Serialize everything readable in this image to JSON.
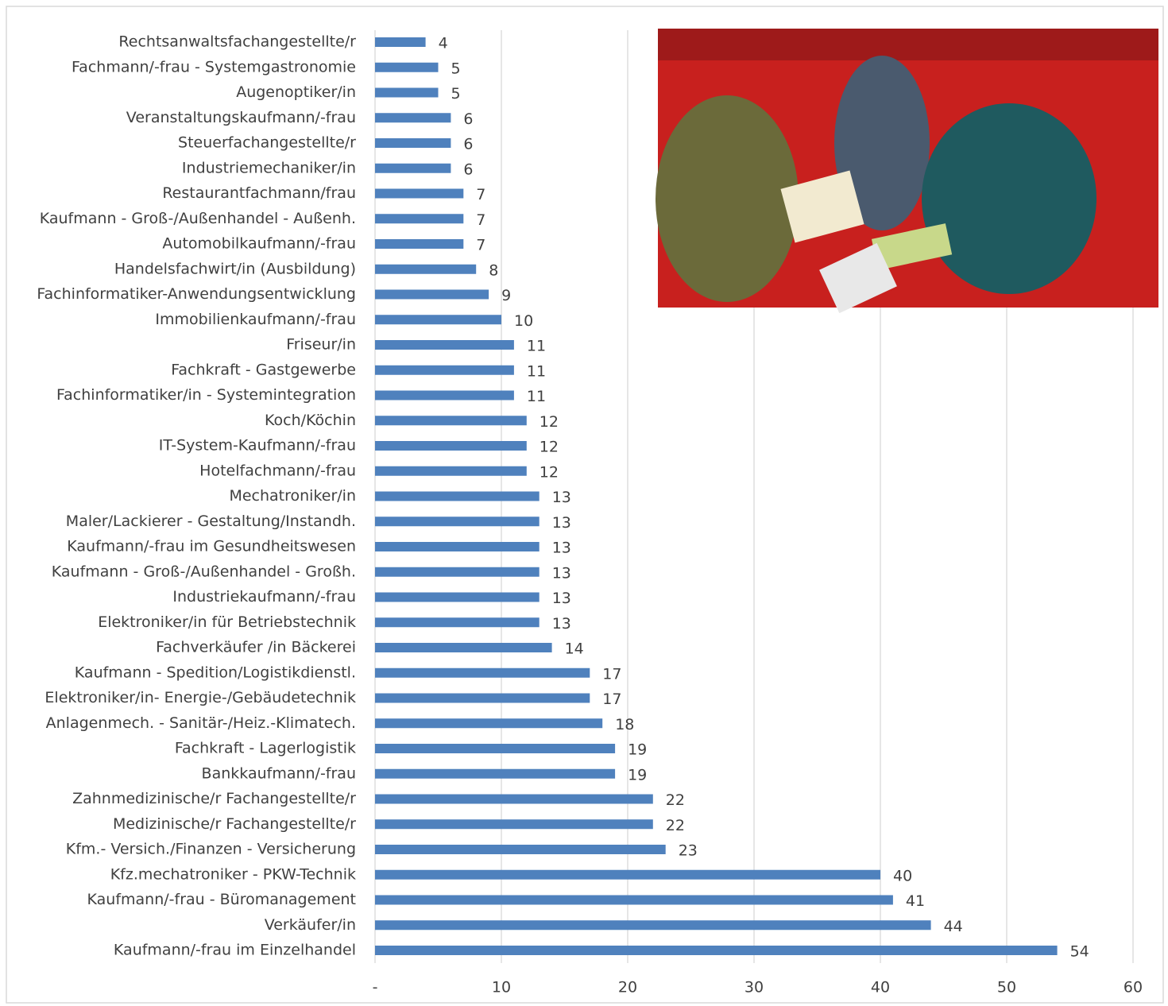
{
  "chart_data": {
    "type": "barh",
    "categories": [
      "Rechtsanwaltsfachangestellte/r",
      "Fachmann/-frau - Systemgastronomie",
      "Augenoptiker/in",
      "Veranstaltungskaufmann/-frau",
      "Steuerfachangestellte/r",
      "Industriemechaniker/in",
      "Restaurantfachmann/frau",
      "Kaufmann - Groß-/Außenhandel - Außenh.",
      "Automobilkaufmann/-frau",
      "Handelsfachwirt/in (Ausbildung)",
      "Fachinformatiker-Anwendungsentwicklung",
      "Immobilienkaufmann/-frau",
      "Friseur/in",
      "Fachkraft - Gastgewerbe",
      "Fachinformatiker/in - Systemintegration",
      "Koch/Köchin",
      "IT-System-Kaufmann/-frau",
      "Hotelfachmann/-frau",
      "Mechatroniker/in",
      "Maler/Lackierer - Gestaltung/Instandh.",
      "Kaufmann/-frau im Gesundheitswesen",
      "Kaufmann - Groß-/Außenhandel - Großh.",
      "Industriekaufmann/-frau",
      "Elektroniker/in für Betriebstechnik",
      "Fachverkäufer /in Bäckerei",
      "Kaufmann - Spedition/Logistikdienstl.",
      "Elektroniker/in- Energie-/Gebäudetechnik",
      "Anlagenmech. - Sanitär-/Heiz.-Klimatech.",
      "Fachkraft - Lagerlogistik",
      "Bankkaufmann/-frau",
      "Zahnmedizinische/r Fachangestellte/r",
      "Medizinische/r Fachangestellte/r",
      "Kfm.- Versich./Finanzen - Versicherung",
      "Kfz.mechatroniker - PKW-Technik",
      "Kaufmann/-frau - Büromanagement",
      "Verkäufer/in",
      "Kaufmann/-frau im Einzelhandel"
    ],
    "values": [
      4,
      5,
      5,
      6,
      6,
      6,
      7,
      7,
      7,
      8,
      9,
      10,
      11,
      11,
      11,
      12,
      12,
      12,
      13,
      13,
      13,
      13,
      13,
      13,
      14,
      17,
      17,
      18,
      19,
      19,
      22,
      22,
      23,
      40,
      41,
      44,
      54
    ],
    "color": "#4f81bd",
    "xlim": [
      0,
      60
    ],
    "xticks": [
      {
        "value": 0,
        "label": "-"
      },
      10,
      20,
      30,
      40,
      50,
      60
    ],
    "grid": true
  }
}
